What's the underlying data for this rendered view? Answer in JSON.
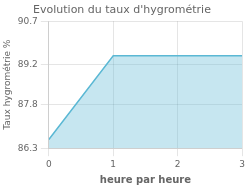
{
  "chart_data": {
    "type": "area",
    "title": "Evolution du taux d'hygrométrie",
    "xlabel": "heure par heure",
    "ylabel": "Taux hygrométrie %",
    "x": [
      0,
      1,
      3
    ],
    "values": [
      86.6,
      89.5,
      89.5
    ],
    "color": "#5bb8d4",
    "xlim": [
      0,
      3
    ],
    "ylim": [
      86.3,
      90.7
    ],
    "xticks": [
      0,
      1,
      2,
      3
    ],
    "yticks": [
      86.3,
      87.8,
      89.2,
      90.7
    ],
    "grid": true
  }
}
